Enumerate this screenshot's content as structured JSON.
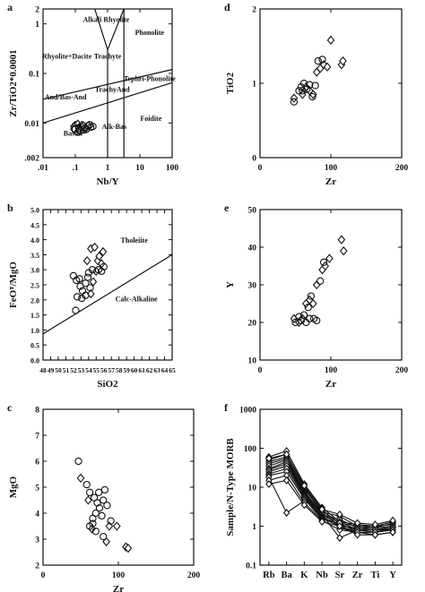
{
  "chart_data": [
    {
      "id": "a",
      "type": "scatter",
      "panel_label": "a",
      "xlabel": "Nb/Y",
      "ylabel": "Zr/TiO2*0.0001",
      "xscale": "log",
      "yscale": "log",
      "xlim": [
        0.01,
        100
      ],
      "ylim": [
        0.002,
        2
      ],
      "xticks": [
        0.01,
        0.1,
        1,
        10,
        100
      ],
      "xtick_labels": [
        ".01",
        ".1",
        "1",
        "10",
        "100"
      ],
      "yticks": [
        0.002,
        0.01,
        0.1,
        1,
        2
      ],
      "ytick_labels": [
        ".002",
        "0.01",
        "0.1",
        "1",
        "2"
      ],
      "fields": [
        {
          "name": "Alkali Rhyolite",
          "x": 0.9,
          "y": 1.1
        },
        {
          "name": "Phonolite",
          "x": 20,
          "y": 0.6
        },
        {
          "name": "Rhyolite+Dacite",
          "x": 0.055,
          "y": 0.2
        },
        {
          "name": "Trachyte",
          "x": 1.0,
          "y": 0.2
        },
        {
          "name": "Tephri-Phonolite",
          "x": 20,
          "y": 0.07
        },
        {
          "name": "TrachyAnd",
          "x": 1.4,
          "y": 0.043
        },
        {
          "name": "And/Bas-And",
          "x": 0.05,
          "y": 0.03
        },
        {
          "name": "Foidite",
          "x": 22,
          "y": 0.011
        },
        {
          "name": "Alk-Bas",
          "x": 1.6,
          "y": 0.0075
        },
        {
          "name": "Basalt",
          "x": 0.085,
          "y": 0.0055
        }
      ],
      "boundaries": [
        [
          [
            0.4,
            2
          ],
          [
            1.0,
            0.3
          ],
          [
            3.2,
            2
          ]
        ],
        [
          [
            1.0,
            0.3
          ],
          [
            1.0,
            0.002
          ]
        ],
        [
          [
            3.2,
            2
          ],
          [
            3.2,
            0.002
          ]
        ],
        [
          [
            0.01,
            0.03
          ],
          [
            100,
            0.12
          ]
        ],
        [
          [
            0.01,
            0.01
          ],
          [
            100,
            0.065
          ]
        ]
      ],
      "series": [
        {
          "marker": "diamond",
          "points": [
            [
              0.09,
              0.0085
            ],
            [
              0.1,
              0.009
            ],
            [
              0.12,
              0.0095
            ],
            [
              0.14,
              0.0085
            ],
            [
              0.11,
              0.0078
            ],
            [
              0.16,
              0.009
            ],
            [
              0.2,
              0.0082
            ],
            [
              0.13,
              0.0072
            ],
            [
              0.09,
              0.0075
            ],
            [
              0.18,
              0.0088
            ]
          ]
        },
        {
          "marker": "circle",
          "points": [
            [
              0.1,
              0.0075
            ],
            [
              0.13,
              0.0078
            ],
            [
              0.16,
              0.0082
            ],
            [
              0.2,
              0.0078
            ],
            [
              0.25,
              0.0088
            ],
            [
              0.3,
              0.0082
            ],
            [
              0.22,
              0.0074
            ],
            [
              0.14,
              0.0069
            ],
            [
              0.12,
              0.0065
            ],
            [
              0.35,
              0.0085
            ],
            [
              0.28,
              0.0092
            ],
            [
              0.18,
              0.0072
            ]
          ]
        }
      ]
    },
    {
      "id": "b",
      "type": "scatter",
      "panel_label": "b",
      "xlabel": "SiO2",
      "ylabel": "FeOᵀ/MgO",
      "xlim": [
        48,
        65
      ],
      "ylim": [
        0,
        5
      ],
      "xticks": [
        48,
        49,
        50,
        51,
        52,
        53,
        54,
        55,
        56,
        57,
        58,
        59,
        60,
        61,
        62,
        63,
        64,
        65
      ],
      "xtick_labels": [
        "48",
        "49",
        "50",
        "51",
        "52",
        "53",
        "54",
        "55",
        "56",
        "57",
        "58",
        "59",
        "60",
        "61",
        "62",
        "63",
        "64",
        "65"
      ],
      "yticks": [
        0,
        0.5,
        1,
        1.5,
        2,
        2.5,
        3,
        3.5,
        4,
        4.5,
        5
      ],
      "ytick_labels": [
        "0.0",
        "0.5",
        "1.0",
        "1.5",
        "2.0",
        "2.5",
        "3.0",
        "3.5",
        "4.0",
        "4.5",
        "5.0"
      ],
      "fields": [
        {
          "name": "Tholeiite",
          "x": 60,
          "y": 3.9
        },
        {
          "name": "Calc-Alkaline",
          "x": 60.3,
          "y": 1.95
        }
      ],
      "boundaries": [
        [
          [
            48,
            0.87
          ],
          [
            65,
            3.5
          ]
        ]
      ],
      "series": [
        {
          "marker": "diamond",
          "points": [
            [
              54.3,
              3.7
            ],
            [
              54.8,
              3.75
            ],
            [
              55.2,
              3.3
            ],
            [
              55.7,
              3.2
            ],
            [
              55.0,
              2.95
            ],
            [
              54.6,
              2.6
            ],
            [
              54.3,
              2.2
            ],
            [
              55.4,
              3.45
            ],
            [
              53.8,
              3.3
            ],
            [
              55.9,
              3.6
            ]
          ]
        },
        {
          "marker": "circle",
          "points": [
            [
              52.0,
              2.8
            ],
            [
              52.4,
              2.65
            ],
            [
              52.9,
              2.45
            ],
            [
              53.2,
              2.3
            ],
            [
              53.6,
              2.55
            ],
            [
              53.9,
              2.75
            ],
            [
              54.2,
              2.4
            ],
            [
              52.5,
              2.1
            ],
            [
              52.3,
              1.65
            ],
            [
              53.1,
              2.05
            ],
            [
              53.6,
              2.15
            ],
            [
              54.0,
              2.9
            ],
            [
              55.3,
              3.0
            ],
            [
              55.7,
              2.95
            ],
            [
              56.0,
              3.1
            ],
            [
              52.8,
              2.7
            ],
            [
              54.5,
              3.0
            ]
          ]
        }
      ]
    },
    {
      "id": "c",
      "type": "scatter",
      "panel_label": "c",
      "xlabel": "Zr",
      "ylabel": "MgO",
      "xlim": [
        0,
        200
      ],
      "ylim": [
        2,
        8
      ],
      "xticks": [
        0,
        100,
        200
      ],
      "xtick_labels": [
        "0",
        "100",
        "200"
      ],
      "yticks": [
        2,
        3,
        4,
        5,
        6,
        7,
        8
      ],
      "ytick_labels": [
        "2",
        "3",
        "4",
        "5",
        "6",
        "7",
        "8"
      ],
      "series": [
        {
          "marker": "diamond",
          "points": [
            [
              50,
              5.35
            ],
            [
              88,
              3.5
            ],
            [
              98,
              3.5
            ],
            [
              84,
              2.9
            ],
            [
              110,
              2.7
            ],
            [
              113,
              2.65
            ],
            [
              60,
              4.5
            ],
            [
              65,
              3.4
            ]
          ]
        },
        {
          "marker": "circle",
          "points": [
            [
              47,
              6.0
            ],
            [
              58,
              5.1
            ],
            [
              62,
              4.8
            ],
            [
              68,
              4.6
            ],
            [
              72,
              4.4
            ],
            [
              75,
              4.2
            ],
            [
              70,
              4.0
            ],
            [
              66,
              3.8
            ],
            [
              80,
              4.5
            ],
            [
              85,
              4.3
            ],
            [
              78,
              3.9
            ],
            [
              62,
              3.5
            ],
            [
              70,
              3.3
            ],
            [
              80,
              3.1
            ],
            [
              66,
              3.6
            ],
            [
              74,
              4.8
            ],
            [
              82,
              4.9
            ],
            [
              90,
              3.7
            ]
          ]
        }
      ]
    },
    {
      "id": "d",
      "type": "scatter",
      "panel_label": "d",
      "xlabel": "Zr",
      "ylabel": "TiO2",
      "xlim": [
        0,
        200
      ],
      "ylim": [
        0,
        2
      ],
      "xticks": [
        0,
        100,
        200
      ],
      "xtick_labels": [
        "0",
        "100",
        "200"
      ],
      "yticks": [
        0,
        1,
        2
      ],
      "ytick_labels": [
        "0",
        "1",
        "2"
      ],
      "series": [
        {
          "marker": "diamond",
          "points": [
            [
              48,
              0.8
            ],
            [
              60,
              0.85
            ],
            [
              65,
              0.95
            ],
            [
              70,
              0.9
            ],
            [
              75,
              0.85
            ],
            [
              85,
              1.2
            ],
            [
              90,
              1.25
            ],
            [
              95,
              1.22
            ],
            [
              100,
              1.58
            ],
            [
              115,
              1.25
            ],
            [
              117,
              1.3
            ],
            [
              80,
              1.15
            ]
          ]
        },
        {
          "marker": "circle",
          "points": [
            [
              48,
              0.75
            ],
            [
              55,
              0.9
            ],
            [
              58,
              0.95
            ],
            [
              62,
              1.0
            ],
            [
              66,
              0.92
            ],
            [
              70,
              0.98
            ],
            [
              74,
              0.82
            ],
            [
              78,
              0.97
            ],
            [
              82,
              1.3
            ],
            [
              88,
              1.32
            ],
            [
              60,
              0.9
            ]
          ]
        }
      ]
    },
    {
      "id": "e",
      "type": "scatter",
      "panel_label": "e",
      "xlabel": "Zr",
      "ylabel": "Y",
      "xlim": [
        0,
        200
      ],
      "ylim": [
        10,
        50
      ],
      "xticks": [
        0,
        100,
        200
      ],
      "xtick_labels": [
        "0",
        "100",
        "200"
      ],
      "yticks": [
        10,
        20,
        30,
        40,
        50
      ],
      "ytick_labels": [
        "10",
        "20",
        "30",
        "40",
        "50"
      ],
      "series": [
        {
          "marker": "diamond",
          "points": [
            [
              48,
              21
            ],
            [
              55,
              20
            ],
            [
              60,
              21
            ],
            [
              65,
              25
            ],
            [
              70,
              26
            ],
            [
              75,
              25
            ],
            [
              80,
              30
            ],
            [
              88,
              34
            ],
            [
              92,
              35
            ],
            [
              98,
              37
            ],
            [
              115,
              42
            ],
            [
              118,
              39
            ]
          ]
        },
        {
          "marker": "circle",
          "points": [
            [
              50,
              20
            ],
            [
              55,
              21.5
            ],
            [
              58,
              20.5
            ],
            [
              62,
              22
            ],
            [
              65,
              20
            ],
            [
              68,
              24
            ],
            [
              72,
              27
            ],
            [
              76,
              21
            ],
            [
              80,
              20.5
            ],
            [
              85,
              31
            ],
            [
              90,
              36
            ],
            [
              70,
              21
            ]
          ]
        }
      ]
    },
    {
      "id": "f",
      "type": "line",
      "panel_label": "f",
      "xlabel": "",
      "ylabel": "Sample/N-Type MORB",
      "yscale": "log",
      "ylim": [
        0.1,
        1000
      ],
      "categories": [
        "Rb",
        "Ba",
        "K",
        "Nb",
        "Sr",
        "Zr",
        "Ti",
        "Y"
      ],
      "yticks": [
        0.1,
        1,
        10,
        100,
        1000
      ],
      "ytick_labels": [
        "0.1",
        "1",
        "10",
        "100",
        "1000"
      ],
      "series": [
        {
          "marker": "diamond",
          "values": [
            60,
            85,
            12,
            3.0,
            1.3,
            1.1,
            1.0,
            1.3
          ]
        },
        {
          "marker": "diamond",
          "values": [
            50,
            70,
            10,
            2.5,
            1.2,
            1.0,
            0.9,
            1.2
          ]
        },
        {
          "marker": "diamond",
          "values": [
            45,
            60,
            9,
            2.3,
            1.8,
            1.0,
            1.0,
            1.1
          ]
        },
        {
          "marker": "diamond",
          "values": [
            40,
            55,
            8,
            2.0,
            1.5,
            0.9,
            0.8,
            1.0
          ]
        },
        {
          "marker": "diamond",
          "values": [
            35,
            50,
            7.5,
            2.2,
            1.0,
            0.9,
            0.9,
            1.0
          ]
        },
        {
          "marker": "diamond",
          "values": [
            30,
            45,
            7,
            2.0,
            0.5,
            0.8,
            0.8,
            0.9
          ]
        },
        {
          "marker": "diamond",
          "values": [
            28,
            40,
            6.5,
            1.8,
            1.3,
            0.8,
            0.7,
            0.9
          ]
        },
        {
          "marker": "diamond",
          "values": [
            25,
            35,
            6,
            1.7,
            1.1,
            0.8,
            0.8,
            0.8
          ]
        },
        {
          "marker": "diamond",
          "values": [
            22,
            30,
            5.5,
            1.6,
            1.0,
            0.7,
            0.7,
            0.8
          ]
        },
        {
          "marker": "diamond",
          "values": [
            20,
            25,
            5,
            1.5,
            1.2,
            0.7,
            0.7,
            0.8
          ]
        },
        {
          "marker": "diamond",
          "values": [
            18,
            2.2,
            4.5,
            2.8,
            0.9,
            0.7,
            0.6,
            0.7
          ]
        },
        {
          "marker": "diamond",
          "values": [
            15,
            20,
            4,
            1.4,
            0.8,
            0.7,
            0.6,
            0.7
          ]
        },
        {
          "marker": "diamond",
          "values": [
            12,
            15,
            3.5,
            1.3,
            1.0,
            0.6,
            0.6,
            0.7
          ]
        },
        {
          "marker": "diamond",
          "values": [
            55,
            70,
            11,
            2.7,
            2.0,
            1.2,
            1.1,
            1.4
          ]
        }
      ]
    }
  ]
}
